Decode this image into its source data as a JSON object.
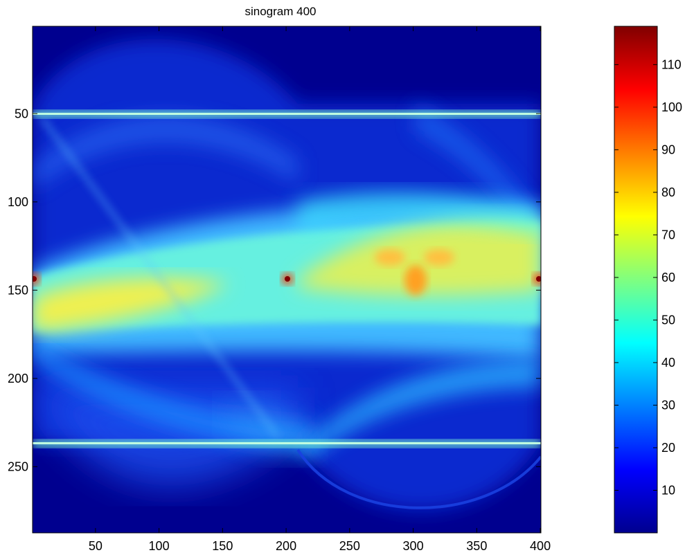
{
  "chart_data": {
    "type": "heatmap",
    "title": "sinogram 400",
    "xlabel": "",
    "ylabel": "",
    "xlim": [
      0.5,
      400.5
    ],
    "ylim": [
      0.5,
      287.5
    ],
    "y_reversed": true,
    "x_ticks": [
      50,
      100,
      150,
      200,
      250,
      300,
      350,
      400
    ],
    "y_ticks": [
      50,
      100,
      150,
      200,
      250
    ],
    "colormap": "jet",
    "colorbar": {
      "clim": [
        0,
        119
      ],
      "ticks": [
        10,
        20,
        30,
        40,
        50,
        60,
        70,
        80,
        90,
        100,
        110
      ]
    },
    "features": {
      "bright_rows": [
        51,
        239
      ],
      "peak_points": [
        {
          "x": 2,
          "y": 144,
          "value": 118
        },
        {
          "x": 201,
          "y": 144,
          "value": 118
        },
        {
          "x": 399,
          "y": 144,
          "value": 118
        }
      ],
      "central_band_center_row": 144,
      "hot_lobes": [
        {
          "x": 280,
          "y": 131,
          "value": 80
        },
        {
          "x": 322,
          "y": 131,
          "value": 80
        },
        {
          "x": 300,
          "y": 145,
          "value": 80
        }
      ]
    }
  }
}
